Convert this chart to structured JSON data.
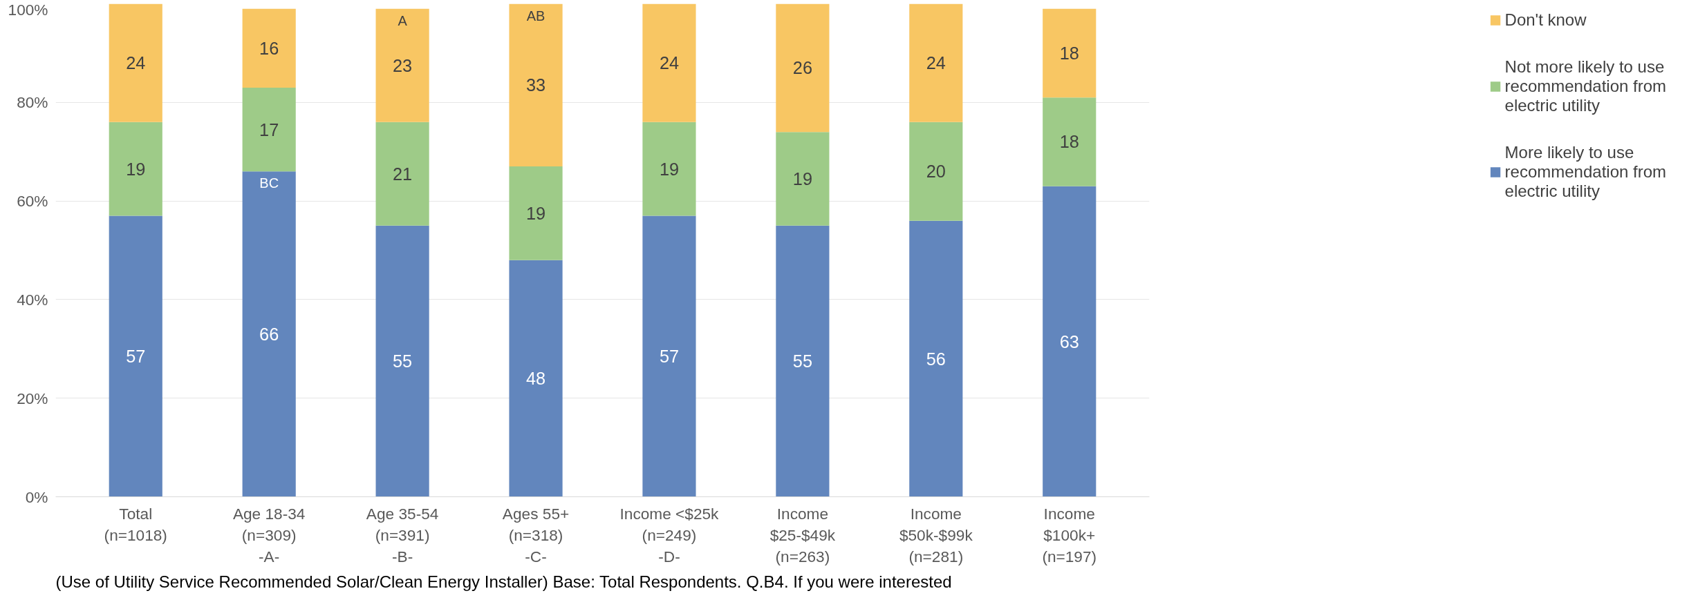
{
  "chart_data": {
    "type": "bar",
    "stacked": true,
    "data_labels": true,
    "legend": "right",
    "grid": "y",
    "categories": [
      "Total\n(n=1018)",
      "Age 18-34\n(n=309)\n-A-",
      "Age 35-54\n(n=391)\n-B-",
      "Ages 55+\n(n=318)\n-C-",
      "Income <$25k\n(n=249)\n-D-",
      "Income\n$25-$49k\n(n=263)",
      "Income\n$50k-$99k\n(n=281)",
      "Income\n$100k+\n(n=197)"
    ],
    "series": [
      {
        "name": "More likely to use recommendation from electric utility",
        "color": "#6286bd",
        "values": [
          57,
          66,
          55,
          48,
          57,
          55,
          56,
          63
        ]
      },
      {
        "name": "Not more likely to use recommendation from electric utility",
        "color": "#9ecb88",
        "values": [
          19,
          17,
          21,
          19,
          19,
          19,
          20,
          18
        ]
      },
      {
        "name": "Don't know",
        "color": "#f8c663",
        "values": [
          24,
          16,
          23,
          33,
          24,
          26,
          24,
          18
        ]
      }
    ],
    "ylim": [
      0,
      100
    ],
    "yticks": [
      {
        "value": 0,
        "label": "0%"
      },
      {
        "value": 20,
        "label": "20%"
      },
      {
        "value": 40,
        "label": "40%"
      },
      {
        "value": 60,
        "label": "60%"
      },
      {
        "value": 80,
        "label": "80%"
      },
      {
        "value": 100,
        "label": "100%"
      }
    ],
    "annotations": [
      {
        "text": "BC",
        "x": "Age 18-34\n(n=309)\n-A-",
        "y": 66
      },
      {
        "text": "A",
        "x": "Age 35-54\n(n=391)\n-B-",
        "y": 99
      },
      {
        "text": "AB",
        "x": "Ages 55+\n(n=318)\n-C-",
        "y": 100
      },
      "(Use of Utility Service Recommended Solar/Clean Energy Installer) Base: Total Respondents. Q.B4. If you were interested"
    ]
  }
}
